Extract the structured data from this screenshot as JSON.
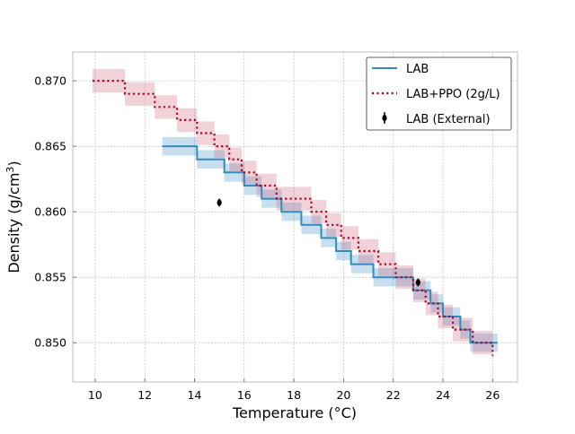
{
  "chart_data": {
    "type": "line",
    "title": "",
    "xlabel": "Temperature (°C)",
    "ylabel_main": "Density (g/cm",
    "ylabel_sup": "3",
    "ylabel_close": ")",
    "xlim": [
      9.1,
      27.0
    ],
    "ylim": [
      0.847,
      0.8722
    ],
    "xticks": [
      10,
      12,
      14,
      16,
      18,
      20,
      22,
      24,
      26
    ],
    "yticks": [
      0.85,
      0.855,
      0.86,
      0.865,
      0.87
    ],
    "ytick_labels": [
      "0.850",
      "0.855",
      "0.860",
      "0.865",
      "0.870"
    ],
    "grid": true,
    "legend_position": "top-right",
    "series": [
      {
        "name": "LAB",
        "style": "step-solid",
        "color": "#348abd",
        "band_color": "#348abd",
        "uncertainty": 0.0007,
        "x": [
          12.7,
          14.1,
          15.2,
          16.0,
          16.7,
          17.5,
          18.3,
          19.1,
          19.7,
          20.3,
          21.2,
          22.0,
          22.8,
          23.5,
          24.0,
          24.7,
          25.1,
          25.6,
          26.2
        ],
        "y": [
          0.865,
          0.864,
          0.863,
          0.862,
          0.861,
          0.86,
          0.859,
          0.858,
          0.857,
          0.856,
          0.855,
          0.855,
          0.854,
          0.853,
          0.852,
          0.851,
          0.85,
          0.85,
          0.85
        ]
      },
      {
        "name": "LAB+PPO (2g/L)",
        "style": "step-dotted",
        "color": "#a60628",
        "band_color": "#cd5c75",
        "uncertainty": 0.0009,
        "x": [
          9.9,
          11.2,
          12.4,
          13.3,
          14.1,
          14.8,
          15.4,
          15.9,
          16.5,
          17.3,
          18.7,
          19.3,
          19.9,
          20.6,
          21.4,
          22.1,
          22.8,
          23.3,
          23.8,
          24.4,
          25.2,
          26.0
        ],
        "y": [
          0.87,
          0.869,
          0.868,
          0.867,
          0.866,
          0.865,
          0.864,
          0.863,
          0.862,
          0.861,
          0.86,
          0.859,
          0.858,
          0.857,
          0.856,
          0.855,
          0.854,
          0.853,
          0.852,
          0.851,
          0.85,
          0.849
        ]
      },
      {
        "name": "LAB (External)",
        "style": "errorbar",
        "color": "#000000",
        "points": [
          {
            "x": 15.0,
            "y": 0.8607,
            "err": 0.0003
          },
          {
            "x": 23.0,
            "y": 0.8546,
            "err": 0.0003
          }
        ]
      }
    ]
  }
}
